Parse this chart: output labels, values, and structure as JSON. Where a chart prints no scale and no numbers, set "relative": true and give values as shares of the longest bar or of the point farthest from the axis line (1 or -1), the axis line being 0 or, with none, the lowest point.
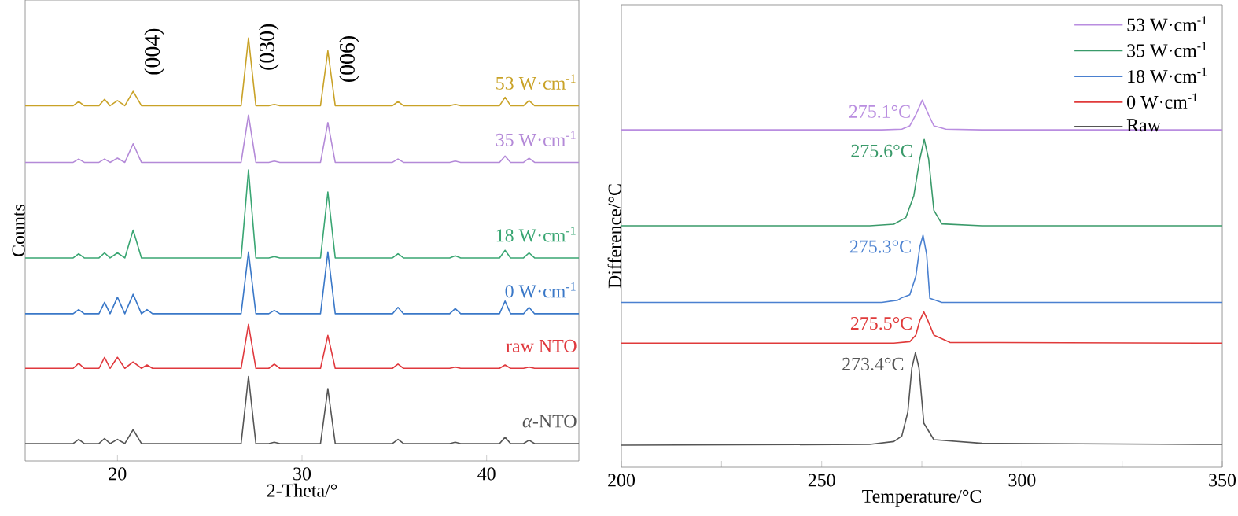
{
  "chart_data": [
    {
      "type": "line",
      "relative": true,
      "xlabel": "2-Theta/°",
      "ylabel": "Counts",
      "xlim": [
        15,
        45
      ],
      "xticks": [
        20,
        30,
        40
      ],
      "x": [
        15,
        17.6,
        17.9,
        18.2,
        19.0,
        19.3,
        19.6,
        20.0,
        20.4,
        20.85,
        21.3,
        21.6,
        21.9,
        26.7,
        27.1,
        27.5,
        28.2,
        28.5,
        28.8,
        31.0,
        31.4,
        31.8,
        34.9,
        35.2,
        35.5,
        38.0,
        38.3,
        38.6,
        40.7,
        41.0,
        41.3,
        42.0,
        42.3,
        42.6,
        45
      ],
      "series": [
        {
          "name": "53 W·cm$^{-1}$",
          "color": "#c9a227",
          "values": [
            0.84,
            0.84,
            0.85,
            0.84,
            0.84,
            0.855,
            0.84,
            0.852,
            0.84,
            0.874,
            0.84,
            0.84,
            0.84,
            0.84,
            1.0,
            0.84,
            0.84,
            0.843,
            0.84,
            0.84,
            0.97,
            0.84,
            0.84,
            0.85,
            0.84,
            0.84,
            0.843,
            0.84,
            0.84,
            0.86,
            0.84,
            0.84,
            0.852,
            0.84,
            0.84
          ]
        },
        {
          "name": "35 W·cm$^{-1}$",
          "color": "#b48ad8",
          "values": [
            0.706,
            0.706,
            0.714,
            0.706,
            0.706,
            0.714,
            0.706,
            0.716,
            0.706,
            0.75,
            0.706,
            0.706,
            0.706,
            0.706,
            0.818,
            0.706,
            0.706,
            0.709,
            0.706,
            0.706,
            0.8,
            0.706,
            0.706,
            0.714,
            0.706,
            0.706,
            0.709,
            0.706,
            0.706,
            0.721,
            0.706,
            0.706,
            0.716,
            0.706,
            0.706
          ]
        },
        {
          "name": "18 W·cm$^{-1}$",
          "color": "#3aa673",
          "values": [
            0.48,
            0.48,
            0.49,
            0.48,
            0.48,
            0.492,
            0.48,
            0.492,
            0.48,
            0.546,
            0.48,
            0.48,
            0.48,
            0.48,
            0.688,
            0.48,
            0.48,
            0.483,
            0.48,
            0.48,
            0.636,
            0.48,
            0.48,
            0.49,
            0.48,
            0.48,
            0.485,
            0.48,
            0.48,
            0.498,
            0.48,
            0.48,
            0.492,
            0.48,
            0.48
          ]
        },
        {
          "name": "0 W·cm$^{-1}$",
          "color": "#3a78c8",
          "values": [
            0.348,
            0.348,
            0.358,
            0.348,
            0.348,
            0.375,
            0.348,
            0.387,
            0.348,
            0.394,
            0.348,
            0.358,
            0.348,
            0.348,
            0.494,
            0.348,
            0.348,
            0.356,
            0.348,
            0.348,
            0.494,
            0.348,
            0.348,
            0.363,
            0.348,
            0.348,
            0.36,
            0.348,
            0.348,
            0.378,
            0.348,
            0.348,
            0.363,
            0.348,
            0.348
          ]
        },
        {
          "name": "raw NTO",
          "color": "#e0393e",
          "values": [
            0.219,
            0.219,
            0.231,
            0.219,
            0.219,
            0.245,
            0.219,
            0.245,
            0.219,
            0.234,
            0.219,
            0.227,
            0.219,
            0.219,
            0.323,
            0.219,
            0.219,
            0.229,
            0.219,
            0.219,
            0.297,
            0.219,
            0.219,
            0.229,
            0.219,
            0.219,
            0.222,
            0.219,
            0.219,
            0.227,
            0.219,
            0.219,
            0.222,
            0.219,
            0.219
          ]
        },
        {
          "name": "*α*-NTO",
          "color": "#555555",
          "values": [
            0.041,
            0.041,
            0.051,
            0.041,
            0.041,
            0.053,
            0.041,
            0.051,
            0.041,
            0.074,
            0.041,
            0.041,
            0.041,
            0.041,
            0.2,
            0.041,
            0.041,
            0.044,
            0.041,
            0.041,
            0.171,
            0.041,
            0.041,
            0.051,
            0.041,
            0.041,
            0.044,
            0.041,
            0.041,
            0.056,
            0.041,
            0.041,
            0.049,
            0.041,
            0.041
          ]
        }
      ],
      "annotations": [
        "(004)",
        "(030)",
        "(006)"
      ]
    },
    {
      "type": "line",
      "relative": true,
      "xlabel": "Temperature/°C",
      "ylabel": "Difference/°C",
      "xlim": [
        200,
        350
      ],
      "xticks": [
        200,
        {
          "value": 225,
          "label": null
        },
        250,
        {
          "value": 275,
          "label": null
        },
        300,
        {
          "value": 325,
          "label": null
        },
        350
      ],
      "legend": "top right",
      "series": [
        {
          "name": "53 W·cm$^{-1}$",
          "color": "#b98de0",
          "x": [
            200,
            265,
            270,
            272,
            273.5,
            275.1,
            276.7,
            278,
            281,
            290,
            350
          ],
          "values": [
            0.919,
            0.919,
            0.921,
            0.93,
            0.96,
            1.0,
            0.96,
            0.93,
            0.921,
            0.919,
            0.919
          ]
        },
        {
          "name": "35 W·cm$^{-1}$",
          "color": "#3a9a6a",
          "x": [
            200,
            262,
            268,
            271,
            273,
            274.5,
            275.6,
            276.7,
            278,
            280,
            290,
            350
          ],
          "values": [
            0.658,
            0.658,
            0.662,
            0.68,
            0.74,
            0.84,
            0.893,
            0.84,
            0.7,
            0.663,
            0.658,
            0.658
          ]
        },
        {
          "name": "18 W·cm$^{-1}$",
          "color": "#4a80d0",
          "x": [
            200,
            265,
            269,
            270,
            272,
            273.5,
            274.5,
            275.3,
            276.2,
            277,
            280,
            350
          ],
          "values": [
            0.449,
            0.449,
            0.455,
            0.462,
            0.47,
            0.52,
            0.6,
            0.632,
            0.58,
            0.46,
            0.449,
            0.449
          ]
        },
        {
          "name": "0 W·cm$^{-1}$",
          "color": "#e03a3a",
          "x": [
            200,
            268,
            272,
            273.5,
            274.5,
            275.5,
            276.5,
            278,
            282,
            350
          ],
          "values": [
            0.338,
            0.338,
            0.342,
            0.36,
            0.4,
            0.423,
            0.4,
            0.36,
            0.34,
            0.338
          ]
        },
        {
          "name": "Raw",
          "color": "#555555",
          "x": [
            200,
            262,
            268,
            270,
            271.5,
            272.5,
            273.4,
            274.3,
            275.5,
            278,
            290,
            350
          ],
          "values": [
            0.06,
            0.062,
            0.07,
            0.085,
            0.15,
            0.27,
            0.312,
            0.27,
            0.12,
            0.075,
            0.065,
            0.062
          ]
        }
      ],
      "annotations": [
        {
          "text": "275.1°C",
          "x": 275.1,
          "y": 1.0
        },
        {
          "text": "275.6°C",
          "x": 275.6,
          "y": 0.893
        },
        {
          "text": "275.3°C",
          "x": 275.3,
          "y": 0.632
        },
        {
          "text": "275.5°C",
          "x": 275.5,
          "y": 0.423
        },
        {
          "text": "273.4°C",
          "x": 273.4,
          "y": 0.312
        }
      ]
    }
  ]
}
